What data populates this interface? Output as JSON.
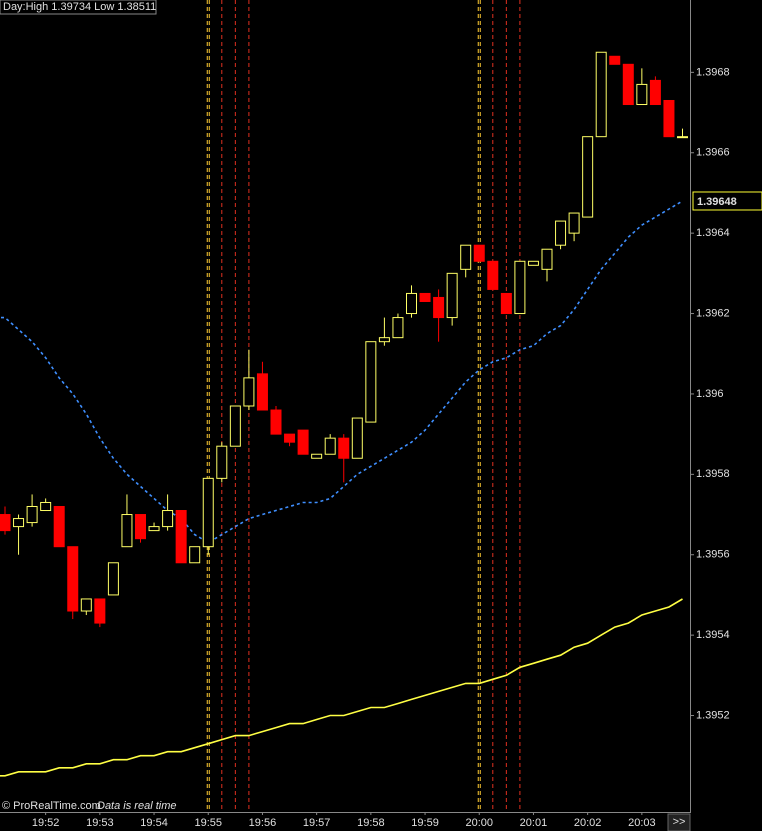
{
  "chart_data": {
    "type": "candlestick",
    "header": "Day:High 1.39734 Low 1.38511",
    "credit": "© ProRealTime.com",
    "note": "Data is real time",
    "scroll_button": ">>",
    "up_color": "#ffff66",
    "down_color": "#ff0000",
    "categories": [
      null,
      null,
      null,
      "19:52",
      null,
      null,
      null,
      "19:53",
      null,
      null,
      null,
      "19:54",
      null,
      null,
      null,
      "19:55",
      null,
      null,
      null,
      "19:56",
      null,
      null,
      null,
      "19:57",
      null,
      null,
      null,
      "19:58",
      null,
      null,
      null,
      "19:59",
      null,
      null,
      null,
      "20:00",
      null,
      null,
      null,
      "20:01",
      null,
      null,
      null,
      "20:02",
      null,
      null,
      null,
      "20:03",
      null,
      null,
      null
    ],
    "open": [
      1.3957,
      1.39567,
      1.39568,
      1.39571,
      1.39572,
      1.39562,
      1.39546,
      1.39549,
      1.3955,
      1.39562,
      1.3957,
      1.39566,
      1.39567,
      1.39571,
      1.39558,
      1.39562,
      1.39579,
      1.39587,
      1.39597,
      1.39605,
      1.39596,
      1.3959,
      1.39591,
      1.39584,
      1.39585,
      1.39589,
      1.39584,
      1.39593,
      1.39613,
      1.39614,
      1.3962,
      1.39625,
      1.39624,
      1.39619,
      1.39631,
      1.39637,
      1.39633,
      1.39625,
      1.3962,
      1.39632,
      1.39631,
      1.39637,
      1.3964,
      1.39644,
      1.39664,
      1.39684,
      1.39682,
      1.39672,
      1.39678,
      1.39673,
      1.39664
    ],
    "high": [
      1.39572,
      1.3957,
      1.39575,
      1.39574,
      1.39572,
      1.39562,
      1.39549,
      1.39549,
      1.39558,
      1.39575,
      1.3957,
      1.39568,
      1.39575,
      1.39571,
      1.39562,
      1.39579,
      1.39588,
      1.39597,
      1.39611,
      1.39608,
      1.39597,
      1.3959,
      1.39591,
      1.39585,
      1.3959,
      1.3959,
      1.39594,
      1.39613,
      1.39619,
      1.3962,
      1.39627,
      1.39625,
      1.39626,
      1.3963,
      1.39637,
      1.39637,
      1.39633,
      1.39625,
      1.39633,
      1.39633,
      1.39636,
      1.39643,
      1.39645,
      1.39664,
      1.39685,
      1.39684,
      1.39682,
      1.39681,
      1.39679,
      1.39673,
      1.39666
    ],
    "low": [
      1.39565,
      1.3956,
      1.39567,
      1.39571,
      1.39562,
      1.39544,
      1.39545,
      1.39542,
      1.3955,
      1.39562,
      1.39563,
      1.39566,
      1.39566,
      1.39558,
      1.39558,
      1.3956,
      1.39578,
      1.39587,
      1.39596,
      1.39596,
      1.3959,
      1.39587,
      1.39585,
      1.39584,
      1.39585,
      1.39578,
      1.39584,
      1.39593,
      1.39612,
      1.39614,
      1.39619,
      1.39623,
      1.39613,
      1.39617,
      1.39629,
      1.39633,
      1.39626,
      1.3962,
      1.3962,
      1.39632,
      1.39628,
      1.39636,
      1.39638,
      1.39644,
      1.39664,
      1.39682,
      1.39672,
      1.39672,
      1.39672,
      1.39664,
      1.39664
    ],
    "close": [
      1.39566,
      1.39569,
      1.39572,
      1.39573,
      1.39562,
      1.39546,
      1.39549,
      1.39543,
      1.39558,
      1.3957,
      1.39564,
      1.39567,
      1.39571,
      1.39558,
      1.39562,
      1.39579,
      1.39587,
      1.39597,
      1.39604,
      1.39596,
      1.3959,
      1.39588,
      1.39585,
      1.39585,
      1.39589,
      1.39584,
      1.39594,
      1.39613,
      1.39614,
      1.39619,
      1.39625,
      1.39623,
      1.39619,
      1.3963,
      1.39637,
      1.39633,
      1.39626,
      1.3962,
      1.39633,
      1.39633,
      1.39636,
      1.39643,
      1.39645,
      1.39664,
      1.39685,
      1.39682,
      1.39672,
      1.39677,
      1.39672,
      1.39664,
      1.39664
    ],
    "overlays": [
      {
        "color": "#3f8fff",
        "dashed": true,
        "values": [
          1.39619,
          1.39616,
          1.39613,
          1.39609,
          1.39604,
          1.396,
          1.39595,
          1.39589,
          1.39584,
          1.3958,
          1.39577,
          1.39574,
          1.39571,
          1.39569,
          1.39565,
          1.39563,
          1.39565,
          1.39567,
          1.39569,
          1.3957,
          1.39571,
          1.39572,
          1.39573,
          1.39573,
          1.39574,
          1.39577,
          1.3958,
          1.39582,
          1.39584,
          1.39586,
          1.39588,
          1.39591,
          1.39595,
          1.39599,
          1.39603,
          1.39606,
          1.39608,
          1.39609,
          1.39611,
          1.39612,
          1.39615,
          1.39617,
          1.39621,
          1.39626,
          1.39631,
          1.39635,
          1.39639,
          1.39642,
          1.39644,
          1.39646,
          1.39648
        ]
      },
      {
        "color": "#ffff44",
        "dashed": false,
        "values": [
          1.39505,
          1.39506,
          1.39506,
          1.39506,
          1.39507,
          1.39507,
          1.39508,
          1.39508,
          1.39509,
          1.39509,
          1.3951,
          1.3951,
          1.39511,
          1.39511,
          1.39512,
          1.39513,
          1.39514,
          1.39515,
          1.39515,
          1.39516,
          1.39517,
          1.39518,
          1.39518,
          1.39519,
          1.3952,
          1.3952,
          1.39521,
          1.39522,
          1.39522,
          1.39523,
          1.39524,
          1.39525,
          1.39526,
          1.39527,
          1.39528,
          1.39528,
          1.39529,
          1.3953,
          1.39532,
          1.39533,
          1.39534,
          1.39535,
          1.39537,
          1.39538,
          1.3954,
          1.39542,
          1.39543,
          1.39545,
          1.39546,
          1.39547,
          1.39549
        ]
      }
    ],
    "last_value_label": 1.39648,
    "ylim": [
      1.39496,
      1.39698
    ],
    "yticks": [
      1.3952,
      1.3954,
      1.3956,
      1.3958,
      1.396,
      1.3962,
      1.3964,
      1.3966,
      1.3968
    ]
  }
}
